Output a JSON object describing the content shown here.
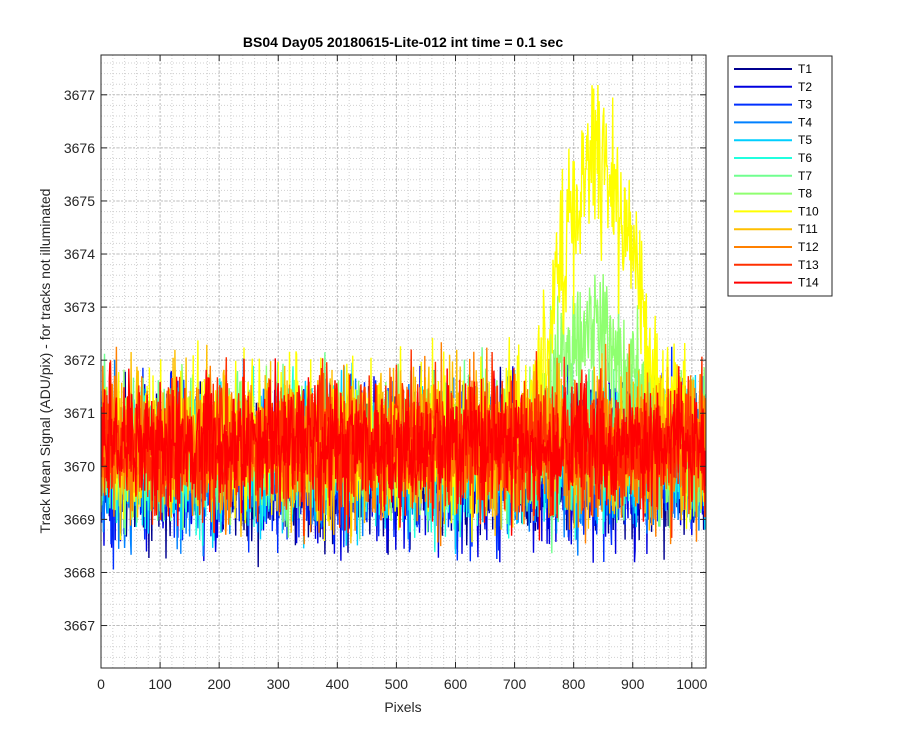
{
  "chart_data": {
    "type": "line",
    "title": "BS04 Day05 20180615-Lite-012 int time = 0.1 sec",
    "xlabel": "Pixels",
    "ylabel": "Track Mean Signal (ADU/pix) - for tracks not illuminated",
    "xlim": [
      0,
      1024
    ],
    "ylim": [
      3666.2,
      3677.75
    ],
    "xticks": [
      0,
      100,
      200,
      300,
      400,
      500,
      600,
      700,
      800,
      900,
      1000
    ],
    "yticks": [
      3667,
      3668,
      3669,
      3670,
      3671,
      3672,
      3673,
      3674,
      3675,
      3676,
      3677
    ],
    "grid": "major-and-minor",
    "legend_position": "outside-top-right",
    "x_points": 1024,
    "series": [
      {
        "name": "T1",
        "color": "#00008f",
        "mean": 3670.0,
        "amplitude": 1.5,
        "bump": 0
      },
      {
        "name": "T2",
        "color": "#0000df",
        "mean": 3670.0,
        "amplitude": 1.6,
        "bump": 0
      },
      {
        "name": "T3",
        "color": "#0030ff",
        "mean": 3670.05,
        "amplitude": 1.5,
        "bump": 0
      },
      {
        "name": "T4",
        "color": "#0080ff",
        "mean": 3670.1,
        "amplitude": 1.5,
        "bump": 0
      },
      {
        "name": "T5",
        "color": "#00cfff",
        "mean": 3670.15,
        "amplitude": 1.4,
        "bump": 0
      },
      {
        "name": "T6",
        "color": "#20ffdf",
        "mean": 3670.2,
        "amplitude": 1.4,
        "bump": 0
      },
      {
        "name": "T7",
        "color": "#70ff8f",
        "mean": 3670.3,
        "amplitude": 1.5,
        "bump": 0
      },
      {
        "name": "T8",
        "color": "#8fff70",
        "mean": 3670.4,
        "amplitude": 1.4,
        "bump": 1.8
      },
      {
        "name": "T10",
        "color": "#ffff00",
        "mean": 3670.5,
        "amplitude": 1.6,
        "bump": 4.5
      },
      {
        "name": "T11",
        "color": "#ffbf00",
        "mean": 3670.4,
        "amplitude": 1.5,
        "bump": 0
      },
      {
        "name": "T12",
        "color": "#ff8000",
        "mean": 3670.4,
        "amplitude": 1.5,
        "bump": 0
      },
      {
        "name": "T13",
        "color": "#ff3000",
        "mean": 3670.4,
        "amplitude": 1.4,
        "bump": 0
      },
      {
        "name": "T14",
        "color": "#ff0000",
        "mean": 3670.4,
        "amplitude": 1.3,
        "bump": 0
      }
    ]
  }
}
